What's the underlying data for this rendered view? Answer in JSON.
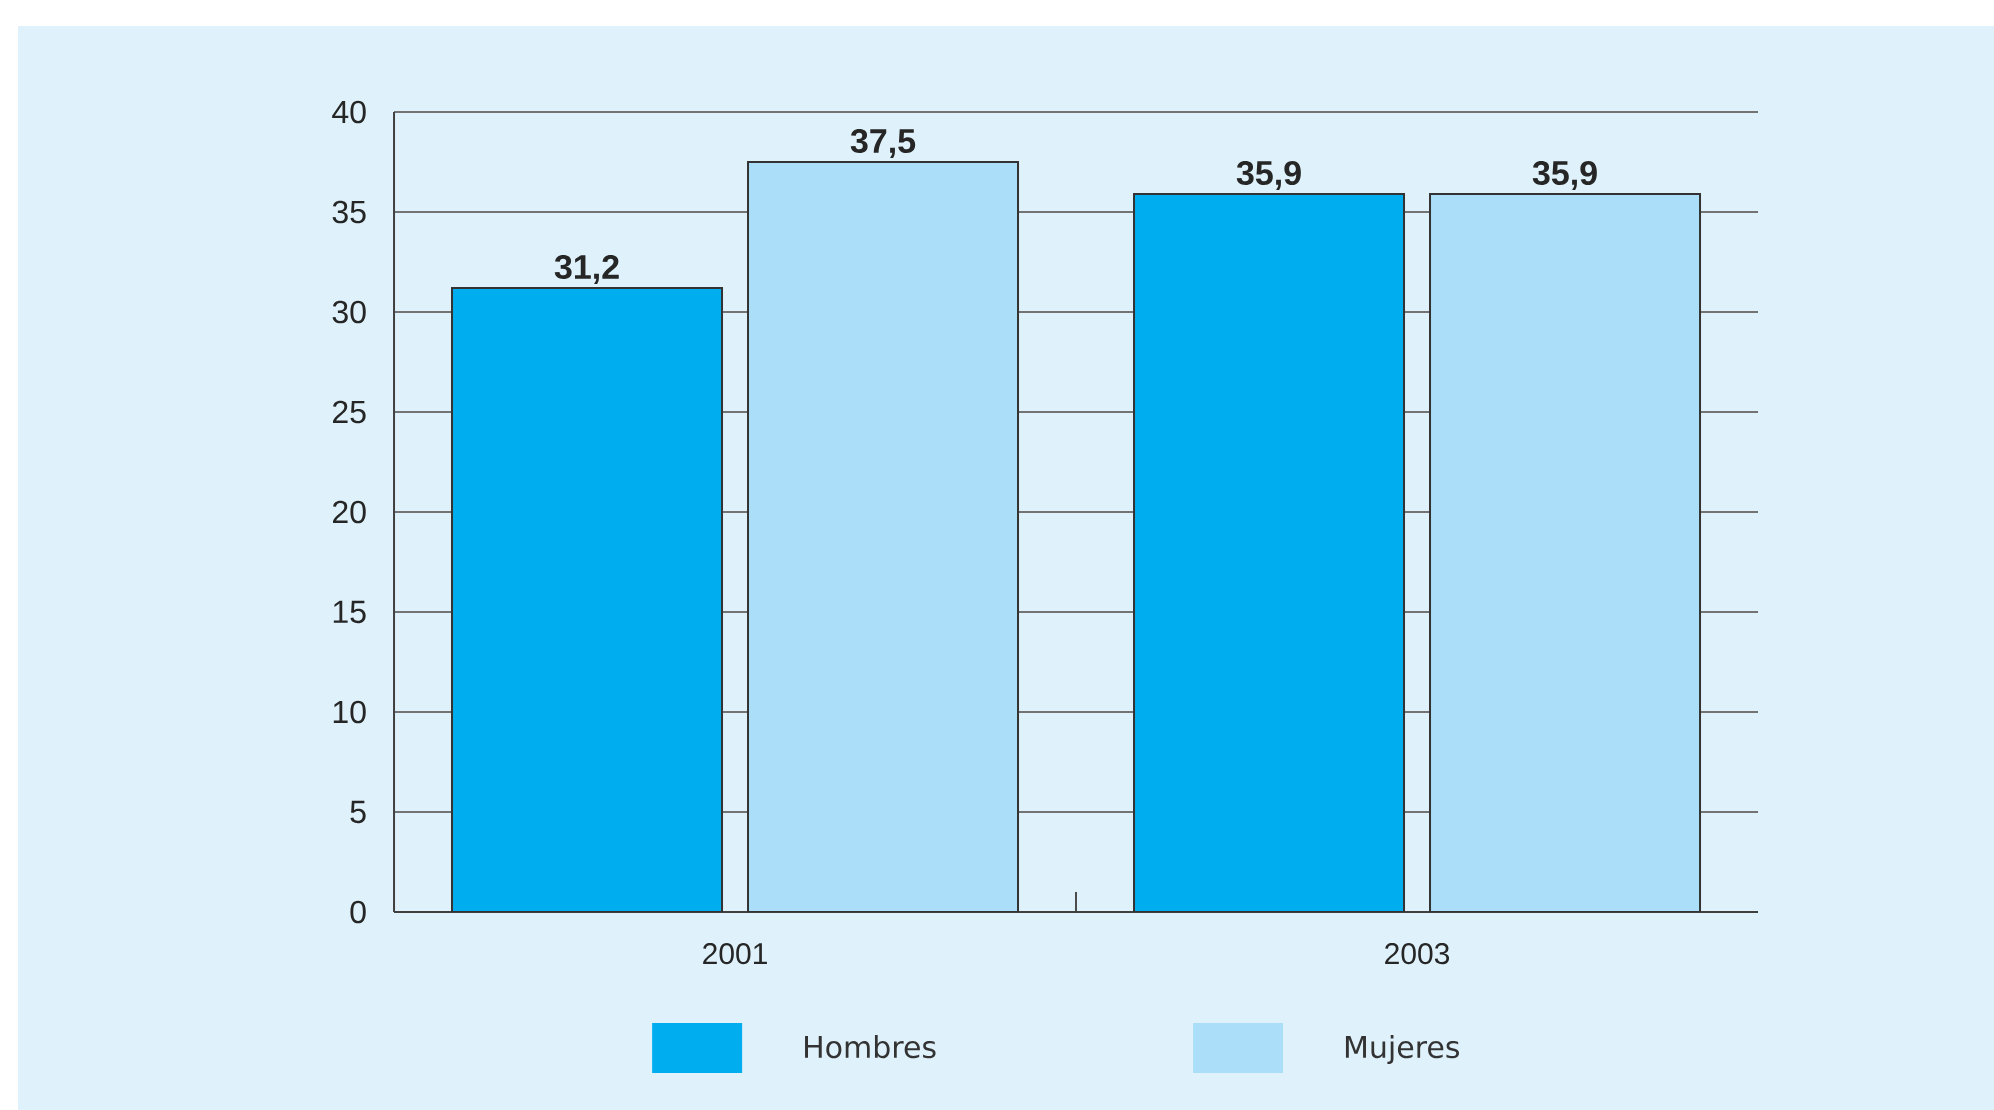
{
  "chart_data": {
    "type": "bar",
    "categories": [
      "2001",
      "2003"
    ],
    "series": [
      {
        "name": "Hombres",
        "color": "#00aeef",
        "values": [
          31.2,
          35.9
        ],
        "value_labels": [
          "31,2",
          "35,9"
        ]
      },
      {
        "name": "Mujeres",
        "color": "#abdff9",
        "values": [
          37.5,
          35.9
        ],
        "value_labels": [
          "37,5",
          "35,9"
        ]
      }
    ],
    "ylim": [
      0,
      40
    ],
    "yticks": [
      0,
      5,
      10,
      15,
      20,
      25,
      30,
      35,
      40
    ],
    "grid": "y",
    "legend": "bottom"
  }
}
